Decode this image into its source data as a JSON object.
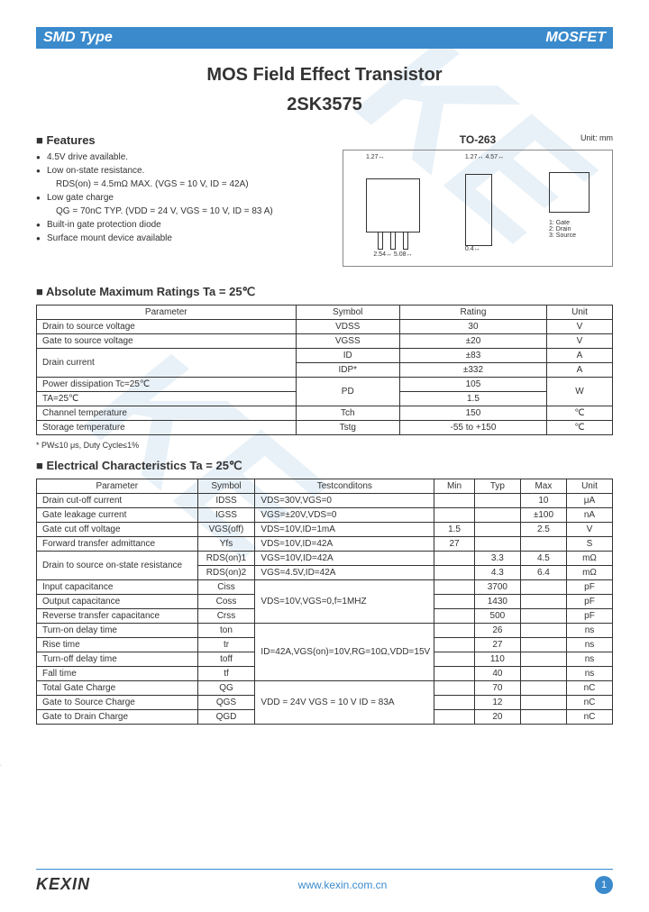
{
  "header": {
    "left": "SMD Type",
    "right": "MOSFET"
  },
  "title": "MOS Field Effect Transistor",
  "subtitle": "2SK3575",
  "package": {
    "name": "TO-263",
    "unit": "Unit: mm"
  },
  "pins": [
    "1: Gate",
    "2: Drain",
    "3: Source"
  ],
  "features": {
    "label": "Features",
    "items": [
      {
        "text": "4.5V drive available.",
        "bullet": true
      },
      {
        "text": "Low on-state resistance.",
        "bullet": true
      },
      {
        "text": "RDS(on) = 4.5mΩ MAX. (VGS = 10 V, ID = 42A)",
        "indent": true
      },
      {
        "text": "Low gate charge",
        "bullet": true
      },
      {
        "text": "QG = 70nC TYP. (VDD = 24 V, VGS = 10 V, ID = 83 A)",
        "indent": true
      },
      {
        "text": "Built-in gate protection diode",
        "bullet": true
      },
      {
        "text": "Surface mount device available",
        "bullet": true
      }
    ]
  },
  "ratings": {
    "label": "Absolute Maximum Ratings Ta = 25℃",
    "columns": [
      "Parameter",
      "Symbol",
      "Rating",
      "Unit"
    ],
    "rows": [
      [
        "Drain to source voltage",
        "VDSS",
        "30",
        "V"
      ],
      [
        "Gate to source voltage",
        "VGSS",
        "±20",
        "V"
      ],
      [
        "Drain current|row2a",
        "ID",
        "±83",
        "A"
      ],
      [
        "|row2b",
        "IDP*",
        "±332",
        "A"
      ],
      [
        "Power dissipation    Tc=25℃|row3a",
        "PD",
        "105",
        "W"
      ],
      [
        "                             TA=25℃|row3b",
        "",
        "1.5",
        ""
      ],
      [
        "Channel temperature",
        "Tch",
        "150",
        "℃"
      ],
      [
        "Storage temperature",
        "Tstg",
        "-55 to +150",
        "℃"
      ]
    ],
    "footnote": "* PW≤10 μs, Duty Cycle≤1%"
  },
  "electrical": {
    "label": "Electrical Characteristics Ta = 25℃",
    "columns": [
      "Parameter",
      "Symbol",
      "Testconditons",
      "Min",
      "Typ",
      "Max",
      "Unit"
    ],
    "rows": [
      [
        "Drain cut-off current",
        "IDSS",
        "VDS=30V,VGS=0",
        "",
        "",
        "10",
        "μA"
      ],
      [
        "Gate leakage current",
        "IGSS",
        "VGS=±20V,VDS=0",
        "",
        "",
        "±100",
        "nA"
      ],
      [
        "Gate cut off voltage",
        "VGS(off)",
        "VDS=10V,ID=1mA",
        "1.5",
        "",
        "2.5",
        "V"
      ],
      [
        "Forward transfer admittance",
        "Yfs",
        "VDS=10V,ID=42A",
        "27",
        "",
        "",
        "S"
      ],
      [
        "Drain to source on-state resistance|r1",
        "RDS(on)1",
        "VGS=10V,ID=42A",
        "",
        "3.3",
        "4.5",
        "mΩ"
      ],
      [
        "|r2",
        "RDS(on)2",
        "VGS=4.5V,ID=42A",
        "",
        "4.3",
        "6.4",
        "mΩ"
      ],
      [
        "Input capacitance",
        "Ciss",
        "VDS=10V,VGS=0,f=1MHZ|cap3",
        "",
        "3700",
        "",
        "pF"
      ],
      [
        "Output capacitance",
        "Coss",
        "|cap",
        "",
        "1430",
        "",
        "pF"
      ],
      [
        "Reverse transfer capacitance",
        "Crss",
        "|cap",
        "",
        "500",
        "",
        "pF"
      ],
      [
        "Turn-on delay time",
        "ton",
        "ID=42A,VGS(on)=10V,RG=10Ω,VDD=15V|sw4",
        "",
        "26",
        "",
        "ns"
      ],
      [
        "Rise time",
        "tr",
        "|sw",
        "",
        "27",
        "",
        "ns"
      ],
      [
        "Turn-off delay time",
        "toff",
        "|sw",
        "",
        "110",
        "",
        "ns"
      ],
      [
        "Fall time",
        "tf",
        "|sw",
        "",
        "40",
        "",
        "ns"
      ],
      [
        "Total Gate Charge",
        "QG",
        "VDD = 24V\nVGS = 10 V\nID = 83A|qg3",
        "",
        "70",
        "",
        "nC"
      ],
      [
        "Gate to Source Charge",
        "QGS",
        "|qg",
        "",
        "12",
        "",
        "nC"
      ],
      [
        "Gate to Drain Charge",
        "QGD",
        "|qg",
        "",
        "20",
        "",
        "nC"
      ]
    ]
  },
  "footer": {
    "logo": "KEXIN",
    "url": "www.kexin.com.cn",
    "page": "1"
  }
}
